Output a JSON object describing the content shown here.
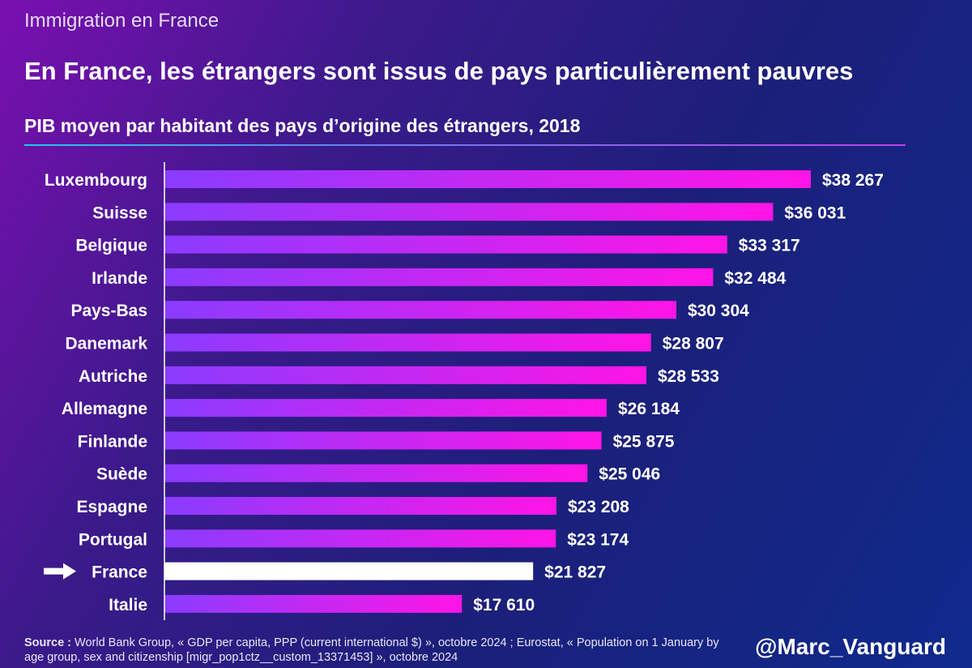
{
  "header": {
    "supertitle": "Immigration en France",
    "title": "En France, les étrangers sont issus de pays particulièrement pauvres",
    "subtitle": "PIB moyen par habitant des pays d’origine des étrangers, 2018"
  },
  "chart_data": {
    "type": "bar",
    "orientation": "horizontal",
    "title": "PIB moyen par habitant des pays d’origine des étrangers, 2018",
    "xlabel": "",
    "ylabel": "",
    "xlim": [
      0,
      38267
    ],
    "categories": [
      "Luxembourg",
      "Suisse",
      "Belgique",
      "Irlande",
      "Pays-Bas",
      "Danemark",
      "Autriche",
      "Allemagne",
      "Finlande",
      "Suède",
      "Espagne",
      "Portugal",
      "France",
      "Italie"
    ],
    "values": [
      38267,
      36031,
      33317,
      32484,
      30304,
      28807,
      28533,
      26184,
      25875,
      25046,
      23208,
      23174,
      21827,
      17610
    ],
    "value_labels": [
      "$38 267",
      "$36 031",
      "$33 317",
      "$32 484",
      "$30 304",
      "$28 807",
      "$28 533",
      "$26 184",
      "$25 875",
      "$25 046",
      "$23 208",
      "$23 174",
      "$21 827",
      "$17 610"
    ],
    "highlight": "France",
    "colors": {
      "bar_start": "#8a3cff",
      "bar_end": "#ff14e6",
      "highlight": "#ffffff",
      "axis": "#ffffff"
    }
  },
  "footer": {
    "source_label": "Source :",
    "source_text": " World Bank Group, «  GDP per capita, PPP (current international $) », octobre 2024 ; Eurostat, « Population on 1 January by age group, sex and citizenship [migr_pop1ctz__custom_13371453] », octobre 2024",
    "handle": "@Marc_Vanguard"
  }
}
